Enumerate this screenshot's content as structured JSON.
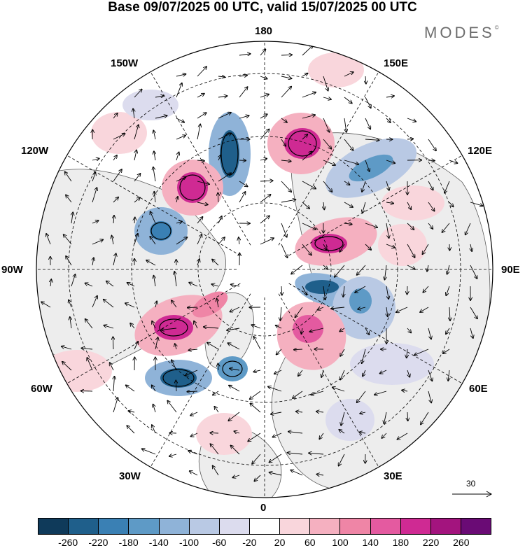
{
  "title": "Base 09/07/2025 00 UTC, valid 15/07/2025 00 UTC",
  "brand": "MODES",
  "brand_mark": "©",
  "map": {
    "projection": "north-polar-stereographic",
    "longitude_labels": [
      "180",
      "150E",
      "120E",
      "90E",
      "60E",
      "30E",
      "0",
      "30W",
      "60W",
      "90W",
      "120W",
      "150W"
    ],
    "reference_vector": "30",
    "colors": {
      "land_shade": "#ededed",
      "coastline": "#5a5a5a",
      "grid": "#000000"
    }
  },
  "colorbar": {
    "labels": [
      "-260",
      "-220",
      "-180",
      "-140",
      "-100",
      "-60",
      "-20",
      "20",
      "60",
      "100",
      "140",
      "180",
      "220",
      "260"
    ],
    "colors": [
      "#0f3a5a",
      "#1f5f8b",
      "#3a80b4",
      "#5e9ac6",
      "#8fb3d8",
      "#b9c9e4",
      "#dcdcee",
      "#ffffff",
      "#f9d6dc",
      "#f5b0c0",
      "#ef85a6",
      "#e45aa0",
      "#cf2a93",
      "#a3147e",
      "#6a0b75"
    ]
  }
}
